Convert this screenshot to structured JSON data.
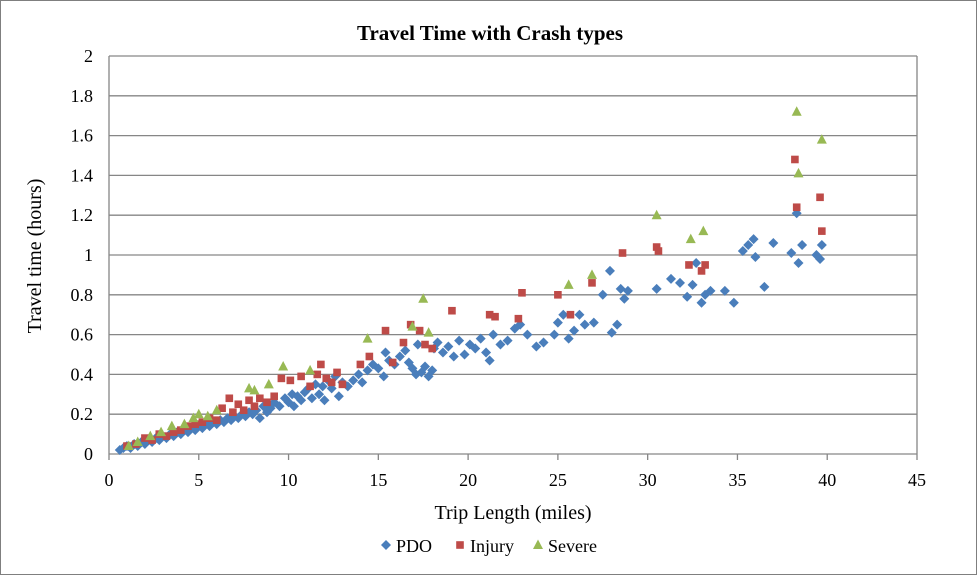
{
  "chart_data": {
    "type": "scatter",
    "title": "Travel Time with Crash types",
    "xlabel": "Trip Length (miles)",
    "ylabel": "Travel time (hours)",
    "xlim": [
      0,
      45
    ],
    "ylim": [
      0,
      2
    ],
    "xticks": [
      0,
      5,
      10,
      15,
      20,
      25,
      30,
      35,
      40,
      45
    ],
    "yticks": [
      "0",
      "0.2",
      "0.4",
      "0.6",
      "0.8",
      "1",
      "1.2",
      "1.4",
      "1.6",
      "1.8",
      "2"
    ],
    "grid": true,
    "legend_position": "bottom",
    "series": [
      {
        "name": "PDO",
        "color": "#4a7ebb",
        "marker": "diamond",
        "points": [
          [
            0.6,
            0.02
          ],
          [
            0.8,
            0.03
          ],
          [
            1.0,
            0.04
          ],
          [
            1.2,
            0.03
          ],
          [
            1.4,
            0.05
          ],
          [
            1.6,
            0.04
          ],
          [
            1.8,
            0.06
          ],
          [
            2.0,
            0.05
          ],
          [
            2.2,
            0.07
          ],
          [
            2.4,
            0.06
          ],
          [
            2.6,
            0.08
          ],
          [
            2.8,
            0.07
          ],
          [
            3.0,
            0.09
          ],
          [
            3.2,
            0.08
          ],
          [
            3.4,
            0.1
          ],
          [
            3.6,
            0.09
          ],
          [
            3.8,
            0.11
          ],
          [
            4.0,
            0.1
          ],
          [
            4.2,
            0.12
          ],
          [
            4.4,
            0.11
          ],
          [
            4.6,
            0.13
          ],
          [
            4.8,
            0.12
          ],
          [
            5.0,
            0.14
          ],
          [
            5.2,
            0.13
          ],
          [
            5.4,
            0.15
          ],
          [
            5.6,
            0.14
          ],
          [
            5.8,
            0.16
          ],
          [
            6.0,
            0.15
          ],
          [
            6.2,
            0.17
          ],
          [
            6.4,
            0.16
          ],
          [
            6.6,
            0.18
          ],
          [
            6.8,
            0.17
          ],
          [
            7.0,
            0.19
          ],
          [
            7.2,
            0.18
          ],
          [
            7.4,
            0.2
          ],
          [
            7.6,
            0.19
          ],
          [
            7.8,
            0.21
          ],
          [
            8.0,
            0.2
          ],
          [
            8.2,
            0.22
          ],
          [
            8.4,
            0.18
          ],
          [
            8.6,
            0.24
          ],
          [
            8.8,
            0.21
          ],
          [
            9.0,
            0.23
          ],
          [
            9.2,
            0.26
          ],
          [
            9.5,
            0.24
          ],
          [
            9.8,
            0.28
          ],
          [
            10.0,
            0.26
          ],
          [
            10.2,
            0.3
          ],
          [
            10.3,
            0.24
          ],
          [
            10.5,
            0.29
          ],
          [
            10.7,
            0.27
          ],
          [
            10.9,
            0.31
          ],
          [
            11.1,
            0.33
          ],
          [
            11.3,
            0.28
          ],
          [
            11.5,
            0.35
          ],
          [
            11.7,
            0.3
          ],
          [
            11.9,
            0.34
          ],
          [
            12.0,
            0.27
          ],
          [
            12.2,
            0.37
          ],
          [
            12.4,
            0.33
          ],
          [
            12.6,
            0.39
          ],
          [
            12.8,
            0.29
          ],
          [
            13.0,
            0.36
          ],
          [
            13.3,
            0.34
          ],
          [
            13.6,
            0.37
          ],
          [
            13.9,
            0.4
          ],
          [
            14.1,
            0.36
          ],
          [
            14.4,
            0.42
          ],
          [
            14.7,
            0.45
          ],
          [
            15.0,
            0.43
          ],
          [
            15.3,
            0.39
          ],
          [
            15.4,
            0.51
          ],
          [
            15.6,
            0.47
          ],
          [
            15.9,
            0.45
          ],
          [
            16.2,
            0.49
          ],
          [
            16.5,
            0.52
          ],
          [
            16.7,
            0.46
          ],
          [
            16.9,
            0.43
          ],
          [
            17.1,
            0.4
          ],
          [
            17.2,
            0.55
          ],
          [
            17.4,
            0.41
          ],
          [
            17.6,
            0.44
          ],
          [
            17.8,
            0.39
          ],
          [
            18.0,
            0.42
          ],
          [
            18.1,
            0.53
          ],
          [
            18.3,
            0.56
          ],
          [
            18.6,
            0.51
          ],
          [
            18.9,
            0.54
          ],
          [
            19.2,
            0.49
          ],
          [
            19.5,
            0.57
          ],
          [
            19.8,
            0.5
          ],
          [
            20.1,
            0.55
          ],
          [
            20.4,
            0.53
          ],
          [
            20.7,
            0.58
          ],
          [
            21.0,
            0.51
          ],
          [
            21.2,
            0.47
          ],
          [
            21.4,
            0.6
          ],
          [
            21.8,
            0.55
          ],
          [
            22.2,
            0.57
          ],
          [
            22.6,
            0.63
          ],
          [
            22.9,
            0.65
          ],
          [
            23.3,
            0.6
          ],
          [
            23.8,
            0.54
          ],
          [
            24.2,
            0.56
          ],
          [
            24.8,
            0.6
          ],
          [
            25.0,
            0.66
          ],
          [
            25.3,
            0.7
          ],
          [
            25.6,
            0.58
          ],
          [
            25.9,
            0.62
          ],
          [
            26.2,
            0.7
          ],
          [
            26.5,
            0.65
          ],
          [
            27.0,
            0.66
          ],
          [
            27.5,
            0.8
          ],
          [
            27.9,
            0.92
          ],
          [
            28.0,
            0.61
          ],
          [
            28.3,
            0.65
          ],
          [
            28.5,
            0.83
          ],
          [
            28.7,
            0.78
          ],
          [
            28.9,
            0.82
          ],
          [
            30.5,
            0.83
          ],
          [
            31.3,
            0.88
          ],
          [
            31.8,
            0.86
          ],
          [
            32.2,
            0.79
          ],
          [
            32.5,
            0.85
          ],
          [
            32.7,
            0.96
          ],
          [
            33.0,
            0.76
          ],
          [
            33.2,
            0.8
          ],
          [
            33.5,
            0.82
          ],
          [
            34.3,
            0.82
          ],
          [
            34.8,
            0.76
          ],
          [
            35.3,
            1.02
          ],
          [
            35.6,
            1.05
          ],
          [
            35.9,
            1.08
          ],
          [
            36.0,
            0.99
          ],
          [
            36.5,
            0.84
          ],
          [
            37.0,
            1.06
          ],
          [
            38.0,
            1.01
          ],
          [
            38.3,
            1.21
          ],
          [
            38.4,
            0.96
          ],
          [
            38.6,
            1.05
          ],
          [
            39.4,
            1.0
          ],
          [
            39.6,
            0.98
          ],
          [
            39.7,
            1.05
          ]
        ]
      },
      {
        "name": "Injury",
        "color": "#be4b48",
        "marker": "square",
        "points": [
          [
            1.0,
            0.04
          ],
          [
            1.5,
            0.05
          ],
          [
            2.0,
            0.08
          ],
          [
            2.4,
            0.07
          ],
          [
            2.8,
            0.1
          ],
          [
            3.2,
            0.09
          ],
          [
            3.6,
            0.11
          ],
          [
            4.0,
            0.12
          ],
          [
            4.4,
            0.14
          ],
          [
            4.8,
            0.15
          ],
          [
            5.2,
            0.16
          ],
          [
            5.6,
            0.18
          ],
          [
            6.0,
            0.17
          ],
          [
            6.3,
            0.23
          ],
          [
            6.7,
            0.28
          ],
          [
            6.9,
            0.21
          ],
          [
            7.2,
            0.25
          ],
          [
            7.5,
            0.22
          ],
          [
            7.8,
            0.27
          ],
          [
            8.1,
            0.24
          ],
          [
            8.4,
            0.28
          ],
          [
            8.8,
            0.26
          ],
          [
            9.2,
            0.29
          ],
          [
            9.6,
            0.38
          ],
          [
            10.1,
            0.37
          ],
          [
            10.7,
            0.39
          ],
          [
            11.2,
            0.34
          ],
          [
            11.6,
            0.4
          ],
          [
            11.8,
            0.45
          ],
          [
            12.1,
            0.38
          ],
          [
            12.4,
            0.36
          ],
          [
            12.7,
            0.41
          ],
          [
            13.0,
            0.35
          ],
          [
            14.0,
            0.45
          ],
          [
            14.5,
            0.49
          ],
          [
            15.4,
            0.62
          ],
          [
            15.8,
            0.46
          ],
          [
            16.4,
            0.56
          ],
          [
            16.8,
            0.65
          ],
          [
            17.3,
            0.62
          ],
          [
            17.6,
            0.55
          ],
          [
            18.0,
            0.53
          ],
          [
            19.1,
            0.72
          ],
          [
            21.2,
            0.7
          ],
          [
            21.5,
            0.69
          ],
          [
            22.8,
            0.68
          ],
          [
            23.0,
            0.81
          ],
          [
            25.0,
            0.8
          ],
          [
            25.7,
            0.7
          ],
          [
            26.9,
            0.86
          ],
          [
            28.6,
            1.01
          ],
          [
            30.5,
            1.04
          ],
          [
            30.6,
            1.02
          ],
          [
            32.3,
            0.95
          ],
          [
            33.0,
            0.92
          ],
          [
            33.2,
            0.95
          ],
          [
            38.2,
            1.48
          ],
          [
            38.3,
            1.24
          ],
          [
            39.6,
            1.29
          ],
          [
            39.7,
            1.12
          ]
        ]
      },
      {
        "name": "Severe",
        "color": "#98b954",
        "marker": "triangle",
        "points": [
          [
            1.1,
            0.04
          ],
          [
            1.6,
            0.06
          ],
          [
            2.3,
            0.09
          ],
          [
            2.9,
            0.11
          ],
          [
            3.5,
            0.14
          ],
          [
            4.2,
            0.15
          ],
          [
            4.7,
            0.18
          ],
          [
            5.0,
            0.2
          ],
          [
            5.5,
            0.19
          ],
          [
            6.0,
            0.22
          ],
          [
            7.8,
            0.33
          ],
          [
            8.1,
            0.32
          ],
          [
            8.9,
            0.35
          ],
          [
            9.7,
            0.44
          ],
          [
            11.2,
            0.42
          ],
          [
            14.4,
            0.58
          ],
          [
            16.9,
            0.64
          ],
          [
            17.5,
            0.78
          ],
          [
            17.8,
            0.61
          ],
          [
            25.6,
            0.85
          ],
          [
            26.9,
            0.9
          ],
          [
            30.5,
            1.2
          ],
          [
            32.4,
            1.08
          ],
          [
            33.1,
            1.12
          ],
          [
            38.3,
            1.72
          ],
          [
            38.4,
            1.41
          ],
          [
            39.7,
            1.58
          ]
        ]
      }
    ]
  }
}
